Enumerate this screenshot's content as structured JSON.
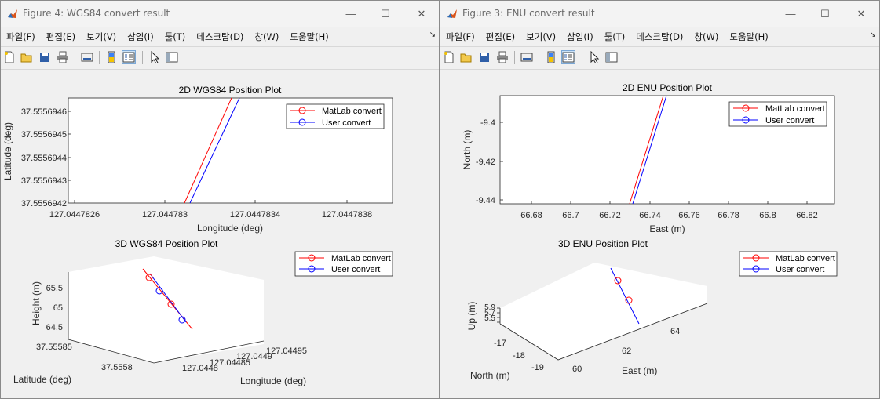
{
  "menu_labels": [
    "파일(F)",
    "편집(E)",
    "보기(V)",
    "삽입(I)",
    "툴(T)",
    "데스크탑(D)",
    "창(W)",
    "도움말(H)"
  ],
  "toolbar_icons": [
    "new-figure-icon",
    "open-file-icon",
    "save-icon",
    "print-icon",
    "link-plot-icon",
    "insert-colorbar-icon",
    "insert-legend-icon",
    "pointer-icon",
    "property-inspector-icon"
  ],
  "window_controls": {
    "minimize": "—",
    "maximize": "☐",
    "close": "✕"
  },
  "windows": [
    {
      "title": "Figure 4: WGS84 convert result",
      "plot2d": {
        "title": "2D WGS84 Position Plot",
        "xlabel": "Longitude (deg)",
        "ylabel": "Latitude (deg)",
        "xticks": [
          "127.0447826",
          "127.044783",
          "127.0447834",
          "127.0447838"
        ],
        "yticks": [
          "37.5556946",
          "37.5556945",
          "37.5556944",
          "37.5556943",
          "37.5556942"
        ]
      },
      "plot3d": {
        "title": "3D WGS84 Position Plot",
        "xlabel": "Latitude (deg)",
        "ylabel": "Longitude (deg)",
        "zlabel": "Height (m)",
        "zticks": [
          "65.5",
          "65",
          "64.5"
        ],
        "lat_ticks": [
          "37.55585",
          "37.5558"
        ],
        "lon_ticks": [
          "127.04495",
          "127.0449",
          "127.04485",
          "127.0448"
        ]
      },
      "legend": [
        "MatLab convert",
        "User convert"
      ]
    },
    {
      "title": "Figure 3: ENU convert result",
      "plot2d": {
        "title": "2D ENU Position Plot",
        "xlabel": "East (m)",
        "ylabel": "North (m)",
        "xticks": [
          "66.68",
          "66.7",
          "66.72",
          "66.74",
          "66.76",
          "66.78",
          "66.8",
          "66.82"
        ],
        "yticks": [
          "-9.4",
          "-9.42",
          "-9.44"
        ]
      },
      "plot3d": {
        "title": "3D ENU Position Plot",
        "xlabel": "North (m)",
        "ylabel": "East (m)",
        "zlabel": "Up (m)",
        "zticks": [
          "5.9",
          "5.7",
          "5.5"
        ],
        "north_ticks": [
          "-17",
          "-18",
          "-19"
        ],
        "east_ticks": [
          "64",
          "62",
          "60"
        ]
      },
      "legend": [
        "MatLab convert",
        "User convert"
      ]
    }
  ],
  "colors": {
    "matlab": "#ff0000",
    "user": "#0000ff"
  }
}
